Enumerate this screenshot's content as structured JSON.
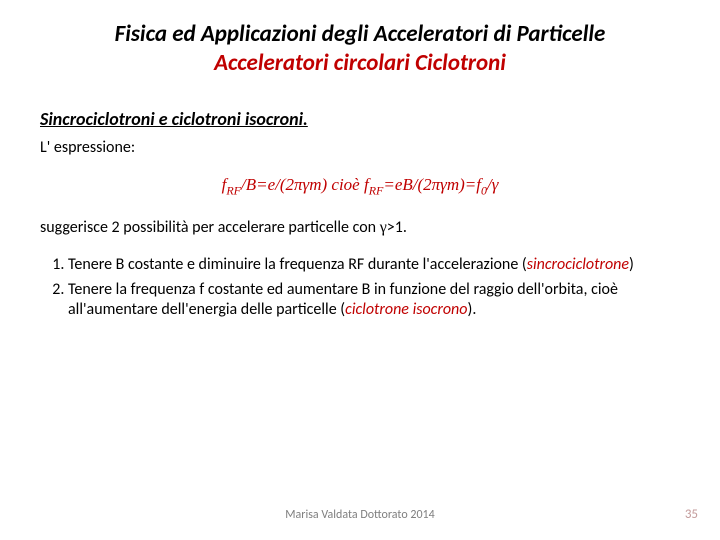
{
  "title": {
    "line1": "Fisica ed Applicazioni degli Acceleratori di Particelle",
    "line2": "Acceleratori circolari Ciclotroni"
  },
  "subtitle": "Sincrociclotroni e ciclotroni isocroni.",
  "intro": "L' espressione:",
  "formula": {
    "part1": "f",
    "sub1": "RF",
    "part2": "/B=e/(2πγm) cioè  f",
    "sub2": "RF",
    "part3": "=eB/(2πγm)=f",
    "sub3": "0",
    "part4": "/γ"
  },
  "suggestion": {
    "pre": "suggerisce 2 possibilità per accelerare particelle con ",
    "gamma": "γ",
    "post": ">1."
  },
  "items": [
    {
      "text_a": "Tenere B costante e diminuire la frequenza RF durante l'accelerazione (",
      "em": "sincrociclotrone",
      "text_b": ")"
    },
    {
      "text_a": "Tenere la frequenza f costante ed aumentare B in funzione del raggio dell'orbita, cioè all'aumentare dell'energia delle particelle (",
      "em": "ciclotrone isocrono",
      "text_b": ")."
    }
  ],
  "footer": "Marisa Valdata Dottorato 2014",
  "page": "35",
  "colors": {
    "accent": "#c00000",
    "text": "#000000",
    "footer": "#7f7f7f",
    "pagenum": "#c39b9b",
    "background": "#ffffff"
  },
  "fonts": {
    "body": "Calibri",
    "formula": "Times New Roman",
    "title_size_pt": 23,
    "subtitle_size_pt": 18,
    "body_size_pt": 16,
    "formula_size_pt": 17,
    "footer_size_pt": 12
  }
}
